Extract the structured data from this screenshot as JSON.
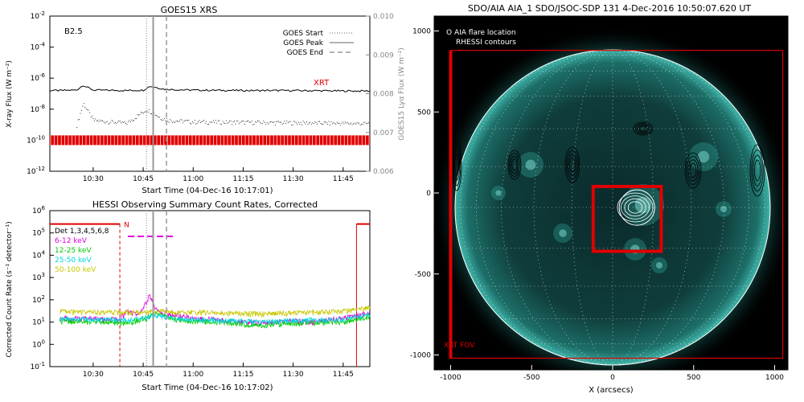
{
  "panels": {
    "goes": {
      "title": "GOES15 XRS",
      "class_label": "B2.5",
      "xrt_label": "XRT",
      "xaxis_title": "Start Time (04-Dec-16 10:17:01)",
      "ylabel_left": "X-ray Flux (W m⁻²)",
      "ylabel_right": "GOES15 Lyα Flux (W m⁻²)",
      "y_ticks_left": [
        {
          "exp": -2
        },
        {
          "exp": -4
        },
        {
          "exp": -6
        },
        {
          "exp": -8
        },
        {
          "exp": -10
        },
        {
          "exp": -12
        }
      ],
      "y_ticks_right": [
        "0.010",
        "0.009",
        "0.008",
        "0.007",
        "0.006"
      ],
      "x_ticks": [
        "10:30",
        "10:45",
        "11:00",
        "11:15",
        "11:30",
        "11:45"
      ],
      "legend": [
        {
          "label": "GOES Start",
          "style": "dotted"
        },
        {
          "label": "GOES Peak",
          "style": "solid"
        },
        {
          "label": "GOES End",
          "style": "dashed"
        }
      ]
    },
    "hessi": {
      "title": "HESSI Observing Summary Count Rates, Corrected",
      "xaxis_title": "Start Time (04-Dec-16 10:17:02)",
      "ylabel": "Corrected Count Rate (s⁻¹ detector⁻¹)",
      "y_ticks": [
        {
          "exp": 6
        },
        {
          "exp": 5
        },
        {
          "exp": 4
        },
        {
          "exp": 3
        },
        {
          "exp": 2
        },
        {
          "exp": 1
        },
        {
          "exp": 0
        },
        {
          "exp": -1
        }
      ],
      "x_ticks": [
        "10:30",
        "10:45",
        "11:00",
        "11:15",
        "11:30",
        "11:45"
      ],
      "night_label": "N",
      "legend_title": "Det 1,3,4,5,6,8",
      "legend": [
        {
          "label": "6-12 keV",
          "color": "#e000e0"
        },
        {
          "label": "12-25 keV",
          "color": "#00cc00"
        },
        {
          "label": "25-50 keV",
          "color": "#00d8d8"
        },
        {
          "label": "50-100 keV",
          "color": "#c8c800"
        }
      ]
    },
    "aia": {
      "title": "SDO/AIA AIA_1 SDO/JSOC-SDP 131   4-Dec-2016 10:50:07.620 UT",
      "legend_line1": "O AIA flare location",
      "legend_line2": "RHESSI contours",
      "fov_label": "XRT FOV",
      "xlabel": "X (arcsecs)",
      "x_ticks": [
        "-1000",
        "-500",
        "0",
        "500",
        "1000"
      ],
      "y_ticks": [
        "1000",
        "500",
        "0",
        "-500",
        "-1000"
      ]
    }
  },
  "chart_data": [
    {
      "type": "line",
      "title": "GOES15 XRS",
      "xlabel": "Start Time (04-Dec-16 10:17:01)",
      "ylabel": "X-ray Flux (W m^-2)",
      "ylabel_right": "GOES15 Lyα Flux (W m^-2)",
      "yscale": "log",
      "ylim": [
        1e-12,
        0.01
      ],
      "ylim_right": [
        0.006,
        0.01
      ],
      "x_range": [
        "10:17",
        "11:53"
      ],
      "series": [
        {
          "key": "long",
          "x": [
            "10:17",
            "10:20",
            "10:25",
            "10:27",
            "10:30",
            "10:40",
            "10:45",
            "10:47",
            "10:49",
            "10:51",
            "10:55",
            "11:00",
            "11:15",
            "11:30",
            "11:45",
            "11:53"
          ],
          "y": [
            1.6e-07,
            1.6e-07,
            1.7e-07,
            3.5e-07,
            1.7e-07,
            1.6e-07,
            1.7e-07,
            3e-07,
            2.5e-07,
            2e-07,
            1.8e-07,
            1.7e-07,
            1.6e-07,
            1.6e-07,
            1.5e-07,
            1.5e-07
          ],
          "color": "#000000"
        },
        {
          "key": "short",
          "x": [
            "10:25",
            "10:27",
            "10:30",
            "10:40",
            "10:46",
            "10:48",
            "10:50",
            "10:53",
            "11:00",
            "11:15",
            "11:30",
            "11:45",
            "11:53"
          ],
          "y": [
            1e-09,
            2.5e-08,
            2e-09,
            1.3e-09,
            1e-08,
            6e-09,
            3e-09,
            2e-09,
            1.6e-09,
            1.5e-09,
            1.4e-09,
            1.3e-09,
            1.2e-09
          ],
          "color": "#000000",
          "style": "dotted"
        }
      ],
      "markers": {
        "goes_start": "10:46",
        "goes_peak": "10:48",
        "goes_end": "10:52"
      },
      "xrt_coverage": [
        "10:17",
        "11:53"
      ]
    },
    {
      "type": "line",
      "title": "HESSI Observing Summary Count Rates, Corrected",
      "xlabel": "Start Time (04-Dec-16 10:17:02)",
      "ylabel": "Corrected Count Rate (s^-1 detector^-1)",
      "yscale": "log",
      "ylim": [
        0.1,
        1000000.0
      ],
      "x_range": [
        "10:17",
        "11:53"
      ],
      "series": [
        {
          "name": "6-12 keV",
          "x": [
            "10:20",
            "10:30",
            "10:38",
            "10:40",
            "10:44",
            "10:46",
            "10:47",
            "10:48",
            "10:50",
            "10:55",
            "11:00",
            "11:15",
            "11:20",
            "11:30",
            "11:35",
            "11:45",
            "11:53"
          ],
          "y": [
            15,
            14,
            13,
            30,
            22,
            80,
            180,
            60,
            25,
            20,
            16,
            10,
            9,
            12,
            10,
            15,
            25
          ],
          "color": "#e000e0"
        },
        {
          "name": "12-25 keV",
          "x": [
            "10:20",
            "10:30",
            "10:40",
            "10:46",
            "10:48",
            "10:55",
            "11:00",
            "11:15",
            "11:20",
            "11:30",
            "11:45",
            "11:53"
          ],
          "y": [
            11,
            10,
            9,
            14,
            25,
            13,
            11,
            8,
            7,
            9,
            10,
            18
          ],
          "color": "#00cc00"
        },
        {
          "name": "25-50 keV",
          "x": [
            "10:20",
            "10:30",
            "10:40",
            "10:46",
            "10:48",
            "10:55",
            "11:00",
            "11:15",
            "11:20",
            "11:30",
            "11:45",
            "11:53"
          ],
          "y": [
            14,
            13,
            12,
            16,
            20,
            14,
            13,
            11,
            10,
            12,
            13,
            22
          ],
          "color": "#00d8d8"
        },
        {
          "name": "50-100 keV",
          "x": [
            "10:20",
            "10:30",
            "10:40",
            "10:46",
            "10:48",
            "10:55",
            "11:00",
            "11:15",
            "11:20",
            "11:30",
            "11:45",
            "11:53"
          ],
          "y": [
            30,
            28,
            27,
            30,
            32,
            28,
            27,
            25,
            24,
            26,
            30,
            45
          ],
          "color": "#c8c800"
        }
      ],
      "markers": {
        "goes_start": "10:46",
        "goes_peak": "10:48",
        "goes_end": "10:52"
      },
      "night_start": "10:38",
      "night_end": "11:49"
    },
    {
      "type": "image",
      "title": "SDO/AIA AIA_1 SDO/JSOC-SDP 131   4-Dec-2016 10:50:07.620 UT",
      "xlabel": "X (arcsecs)",
      "x_range": [
        -1000,
        1000
      ],
      "y_range": [
        -1000,
        1000
      ],
      "xrt_fov": {
        "x": [
          -1000,
          1050
        ],
        "y": [
          -1020,
          880
        ]
      },
      "flare_box": {
        "x": [
          -120,
          300
        ],
        "y": [
          -360,
          40
        ]
      },
      "flare_location": [
        150,
        -90
      ]
    }
  ]
}
